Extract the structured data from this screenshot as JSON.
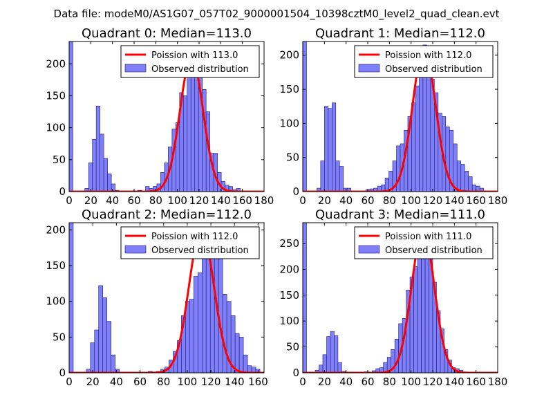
{
  "figure": {
    "title": "Data file: modeM0/AS1G07_057T02_9000001504_10398cztM0_level2_quad_clean.evt"
  },
  "colors": {
    "bar_fill": "#7f7ff9",
    "bar_edge": "#1b1b6b",
    "curve": "#ff0000",
    "axes": "#000000"
  },
  "chart_data": [
    {
      "type": "bar",
      "title": "Quadrant 0: Median=113.0",
      "xlim": [
        0,
        180
      ],
      "ylim": [
        0,
        235
      ],
      "xticks": [
        0,
        20,
        40,
        60,
        80,
        100,
        120,
        140,
        160,
        180
      ],
      "yticks": [
        0,
        50,
        100,
        150,
        200
      ],
      "xtick_labels": [
        "0",
        "20",
        "40",
        "60",
        "80",
        "100",
        "120",
        "140",
        "160",
        "180"
      ],
      "ytick_labels": [
        "0",
        "50",
        "100",
        "150",
        "200"
      ],
      "legend": {
        "location": "upper right",
        "line_label": "Poission with 113.0",
        "bar_label": "Observed distribution"
      },
      "bin_width": 3.5,
      "bin_starts": [
        0,
        14.5,
        18,
        21.5,
        25,
        28.5,
        32,
        35.5,
        39,
        42.5,
        46,
        49.5,
        53,
        56.5,
        60,
        63.5,
        67,
        70.5,
        74,
        77.5,
        81,
        84.5,
        88,
        91.5,
        95,
        98.5,
        102,
        105.5,
        109,
        112.5,
        116,
        119.5,
        123,
        126.5,
        130,
        133.5,
        137,
        140.5,
        144,
        147.5,
        151,
        154.5,
        158,
        161.5,
        165
      ],
      "counts": [
        235,
        5,
        45,
        82,
        134,
        90,
        52,
        28,
        12,
        2,
        0,
        0,
        0,
        0,
        0,
        2,
        0,
        8,
        5,
        8,
        12,
        30,
        45,
        70,
        98,
        108,
        155,
        150,
        205,
        215,
        218,
        190,
        160,
        125,
        60,
        60,
        30,
        16,
        10,
        8,
        3,
        5,
        1,
        1,
        0
      ],
      "poisson_mean": 113.0,
      "poisson_peak": 210
    },
    {
      "type": "bar",
      "title": "Quadrant 1: Median=112.0",
      "xlim": [
        0,
        180
      ],
      "ylim": [
        0,
        220
      ],
      "xticks": [
        0,
        20,
        40,
        60,
        80,
        100,
        120,
        140,
        160,
        180
      ],
      "yticks": [
        0,
        50,
        100,
        150,
        200
      ],
      "xtick_labels": [
        "0",
        "20",
        "40",
        "60",
        "80",
        "100",
        "120",
        "140",
        "160",
        "180"
      ],
      "ytick_labels": [
        "0",
        "50",
        "100",
        "150",
        "200"
      ],
      "legend": {
        "location": "upper right",
        "line_label": "Poission with 112.0",
        "bar_label": "Observed distribution"
      },
      "bin_width": 3.5,
      "bin_starts": [
        0,
        13,
        16.5,
        20,
        23.5,
        27,
        30.5,
        34,
        37.5,
        41,
        44.5,
        48,
        51.5,
        55,
        58.5,
        62,
        65.5,
        69,
        72.5,
        76,
        79.5,
        83,
        86.5,
        90,
        93.5,
        97,
        100.5,
        104,
        107.5,
        111,
        114.5,
        118,
        121.5,
        125,
        128.5,
        132,
        135.5,
        139,
        142.5,
        146,
        149.5,
        153,
        156.5,
        160,
        163.5,
        167
      ],
      "counts": [
        220,
        5,
        45,
        125,
        122,
        130,
        45,
        37,
        5,
        5,
        0,
        0,
        0,
        0,
        3,
        4,
        5,
        8,
        10,
        20,
        30,
        45,
        67,
        70,
        90,
        110,
        130,
        155,
        200,
        215,
        190,
        165,
        145,
        115,
        110,
        95,
        90,
        70,
        45,
        40,
        30,
        22,
        10,
        8,
        5,
        0
      ],
      "poisson_mean": 112.0,
      "poisson_peak": 210
    },
    {
      "type": "bar",
      "title": "Quadrant 2: Median=112.0",
      "xlim": [
        0,
        165
      ],
      "ylim": [
        0,
        210
      ],
      "xticks": [
        0,
        20,
        40,
        60,
        80,
        100,
        120,
        140,
        160
      ],
      "yticks": [
        0,
        50,
        100,
        150,
        200
      ],
      "xtick_labels": [
        "0",
        "20",
        "40",
        "60",
        "80",
        "100",
        "120",
        "140",
        "160"
      ],
      "ytick_labels": [
        "0",
        "50",
        "100",
        "150",
        "200"
      ],
      "legend": {
        "location": "upper right",
        "line_label": "Poission with 112.0",
        "bar_label": "Observed distribution"
      },
      "bin_width": 3.5,
      "bin_starts": [
        0,
        14.5,
        18,
        21.5,
        25,
        28.5,
        32,
        35.5,
        39,
        42.5,
        46,
        49.5,
        53,
        56.5,
        60,
        63.5,
        67,
        70.5,
        74,
        77.5,
        81,
        84.5,
        88,
        91.5,
        95,
        98.5,
        102,
        105.5,
        109,
        112.5,
        116,
        119.5,
        123,
        126.5,
        130,
        133.5,
        137,
        140.5,
        144,
        147.5,
        151,
        154.5,
        158
      ],
      "counts": [
        210,
        5,
        42,
        60,
        122,
        105,
        72,
        25,
        5,
        0,
        0,
        0,
        0,
        0,
        0,
        0,
        2,
        0,
        2,
        5,
        8,
        18,
        30,
        45,
        80,
        100,
        103,
        135,
        140,
        163,
        200,
        175,
        165,
        168,
        110,
        100,
        80,
        55,
        50,
        25,
        10,
        8,
        5
      ],
      "poisson_mean": 112.0,
      "poisson_peak": 200
    },
    {
      "type": "bar",
      "title": "Quadrant 3: Median=111.0",
      "xlim": [
        0,
        180
      ],
      "ylim": [
        0,
        290
      ],
      "xticks": [
        0,
        20,
        40,
        60,
        80,
        100,
        120,
        140,
        160,
        180
      ],
      "yticks": [
        0,
        50,
        100,
        150,
        200,
        250
      ],
      "xtick_labels": [
        "0",
        "20",
        "40",
        "60",
        "80",
        "100",
        "120",
        "140",
        "160",
        "180"
      ],
      "ytick_labels": [
        "0",
        "50",
        "100",
        "150",
        "200",
        "250"
      ],
      "legend": {
        "location": "upper right",
        "line_label": "Poission with 111.0",
        "bar_label": "Observed distribution"
      },
      "bin_width": 3.5,
      "bin_starts": [
        0,
        11.5,
        15,
        18.5,
        22,
        25.5,
        29,
        32.5,
        36,
        39.5,
        43,
        46.5,
        50,
        53.5,
        57,
        60.5,
        64,
        67.5,
        71,
        74.5,
        78,
        81.5,
        85,
        88.5,
        92,
        95.5,
        99,
        102.5,
        106,
        109.5,
        113,
        116.5,
        120,
        123.5,
        127,
        130.5,
        134,
        137.5,
        141,
        144.5,
        148,
        151.5,
        155
      ],
      "counts": [
        290,
        5,
        15,
        35,
        70,
        80,
        72,
        20,
        3,
        0,
        0,
        0,
        0,
        0,
        2,
        0,
        4,
        8,
        10,
        20,
        30,
        45,
        65,
        95,
        105,
        160,
        185,
        205,
        250,
        265,
        265,
        220,
        175,
        120,
        85,
        45,
        25,
        10,
        8,
        5,
        1,
        0,
        0
      ],
      "poisson_mean": 111.0,
      "poisson_peak": 275
    }
  ]
}
